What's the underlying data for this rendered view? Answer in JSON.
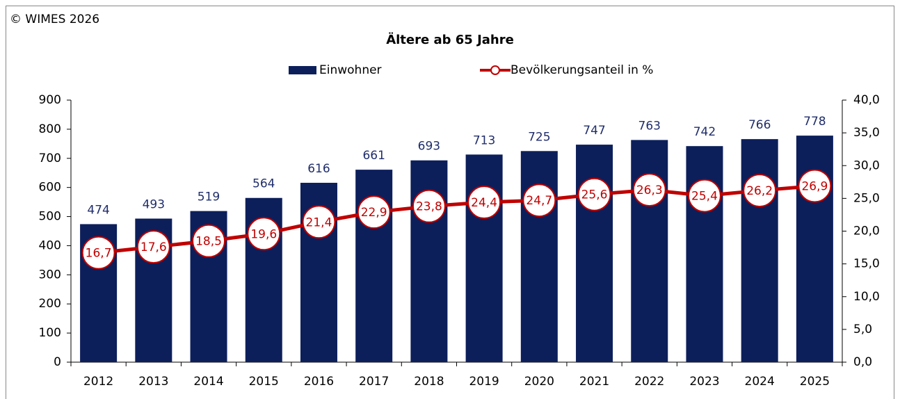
{
  "chart_data": {
    "type": "bar",
    "copyright": "© WIMES 2026",
    "title": "Ältere ab 65 Jahre",
    "categories": [
      "2012",
      "2013",
      "2014",
      "2015",
      "2016",
      "2017",
      "2018",
      "2019",
      "2020",
      "2021",
      "2022",
      "2023",
      "2024",
      "2025"
    ],
    "series": [
      {
        "name": "Einwohner",
        "type": "bar",
        "color": "#0c1f5b",
        "label_color": "#1f2d6b",
        "values": [
          474,
          493,
          519,
          564,
          616,
          661,
          693,
          713,
          725,
          747,
          763,
          742,
          766,
          778
        ]
      },
      {
        "name": "Bevölkerungsanteil in %",
        "type": "line",
        "axis": "y2",
        "color": "#c00000",
        "values": [
          16.7,
          17.6,
          18.5,
          19.6,
          21.4,
          22.9,
          23.8,
          24.4,
          24.7,
          25.6,
          26.3,
          25.4,
          26.2,
          26.9
        ],
        "value_labels": [
          "16,7",
          "17,6",
          "18,5",
          "19,6",
          "21,4",
          "22,9",
          "23,8",
          "24,4",
          "24,7",
          "25,6",
          "26,3",
          "25,4",
          "26,2",
          "26,9"
        ]
      }
    ],
    "ylim": [
      0,
      900
    ],
    "yticks": [
      0,
      100,
      200,
      300,
      400,
      500,
      600,
      700,
      800,
      900
    ],
    "y2lim": [
      0,
      40
    ],
    "y2ticks": [
      {
        "value": 0,
        "label": "0,0"
      },
      {
        "value": 5,
        "label": "5,0"
      },
      {
        "value": 10,
        "label": "10,0"
      },
      {
        "value": 15,
        "label": "15,0"
      },
      {
        "value": 20,
        "label": "20,0"
      },
      {
        "value": 25,
        "label": "25,0"
      },
      {
        "value": 30,
        "label": "30,0"
      },
      {
        "value": 35,
        "label": "35,0"
      },
      {
        "value": 40,
        "label": "40,0"
      }
    ],
    "grid": false,
    "legend": "top"
  }
}
